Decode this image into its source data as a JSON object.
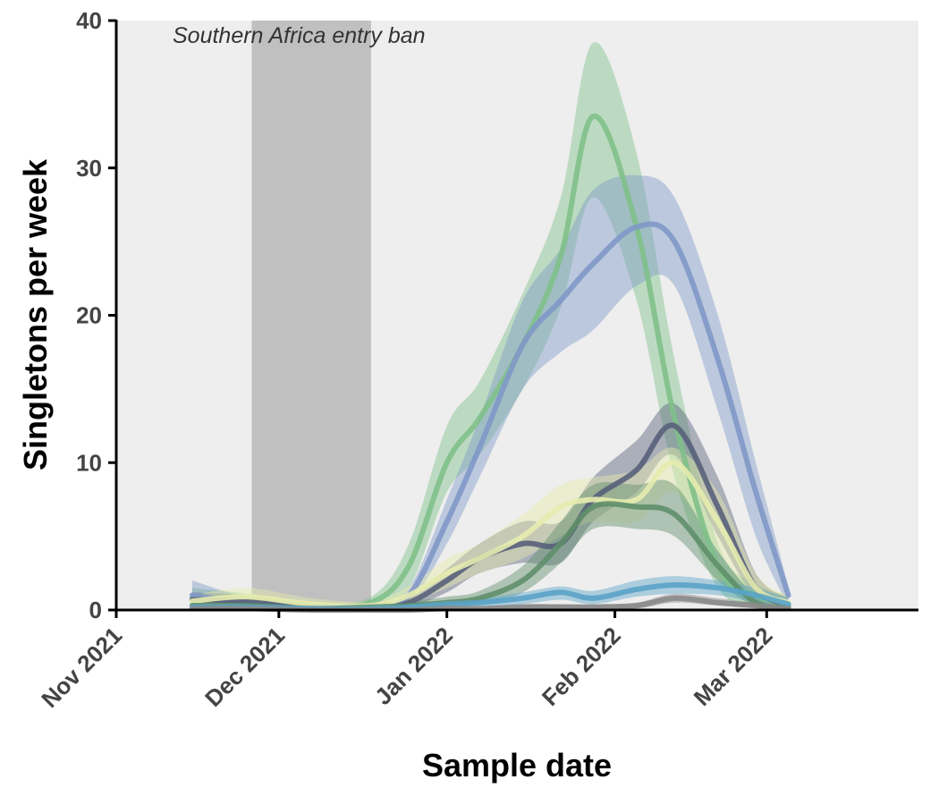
{
  "chart_data": {
    "type": "area",
    "title": "",
    "xlabel": "Sample date",
    "ylabel": "Singletons per week",
    "xlim": [
      "2021-11-01",
      "2022-03-29"
    ],
    "ylim": [
      0,
      40
    ],
    "x_ticks": [
      {
        "date": "2021-11-01",
        "label": "Nov 2021"
      },
      {
        "date": "2021-12-01",
        "label": "Dec 2021"
      },
      {
        "date": "2022-01-01",
        "label": "Jan 2022"
      },
      {
        "date": "2022-02-01",
        "label": "Feb 2022"
      },
      {
        "date": "2022-03-01",
        "label": "Mar 2022"
      }
    ],
    "y_ticks": [
      {
        "value": 0,
        "label": "0"
      },
      {
        "value": 10,
        "label": "10"
      },
      {
        "value": 20,
        "label": "20"
      },
      {
        "value": 30,
        "label": "30"
      },
      {
        "value": 40,
        "label": "40"
      }
    ],
    "grid": false,
    "legend": "none",
    "background_color": "#eeeeee",
    "shaded_region": {
      "start": "2021-11-26",
      "end": "2021-12-18",
      "label": "Southern Africa entry ban",
      "color": "#c0c0c0"
    },
    "x": [
      "2021-11-15",
      "2021-11-25",
      "2021-12-07",
      "2021-12-18",
      "2021-12-25",
      "2022-01-01",
      "2022-01-07",
      "2022-01-15",
      "2022-01-22",
      "2022-01-28",
      "2022-02-05",
      "2022-02-12",
      "2022-02-20",
      "2022-02-27",
      "2022-03-05"
    ],
    "series": [
      {
        "color": "#7fc08a",
        "values": [
          0.8,
          0.6,
          0.2,
          0.5,
          3.0,
          10.0,
          13.0,
          18.0,
          24.0,
          33.5,
          26.0,
          13.0,
          3.0,
          1.0,
          0.4
        ],
        "lower": [
          0.3,
          0.2,
          0.0,
          0.2,
          1.5,
          8.0,
          10.5,
          15.0,
          20.5,
          28.0,
          21.0,
          9.0,
          1.5,
          0.3,
          0.1
        ],
        "upper": [
          1.5,
          1.1,
          0.5,
          0.9,
          4.5,
          12.5,
          15.5,
          21.5,
          28.0,
          38.5,
          31.0,
          17.0,
          4.5,
          1.8,
          1.0
        ]
      },
      {
        "color": "#7f98c8",
        "values": [
          1.0,
          0.5,
          0.2,
          0.3,
          1.0,
          6.0,
          11.0,
          18.0,
          21.0,
          23.5,
          26.0,
          25.0,
          17.0,
          8.0,
          1.0
        ],
        "lower": [
          0.4,
          0.2,
          0.0,
          0.1,
          0.5,
          4.5,
          9.0,
          15.0,
          17.5,
          19.0,
          22.0,
          22.0,
          13.5,
          5.0,
          0.3
        ],
        "upper": [
          2.0,
          0.9,
          0.5,
          0.6,
          1.5,
          7.5,
          13.0,
          21.0,
          24.5,
          28.5,
          29.5,
          28.0,
          20.0,
          10.0,
          1.6
        ]
      },
      {
        "color": "#58617a",
        "values": [
          0.7,
          0.6,
          0.2,
          0.1,
          0.5,
          2.0,
          3.5,
          4.5,
          4.5,
          7.5,
          9.5,
          12.5,
          7.0,
          1.5,
          0.4
        ],
        "lower": [
          0.3,
          0.2,
          0.0,
          0.0,
          0.2,
          1.2,
          2.5,
          3.2,
          3.2,
          6.0,
          8.0,
          10.5,
          5.0,
          0.8,
          0.1
        ],
        "upper": [
          1.2,
          1.0,
          0.5,
          0.3,
          0.9,
          2.8,
          4.5,
          6.0,
          6.0,
          9.0,
          11.5,
          14.0,
          9.0,
          2.5,
          0.8
        ]
      },
      {
        "color": "#e6ecae",
        "values": [
          0.6,
          0.9,
          0.4,
          0.3,
          1.0,
          2.5,
          3.5,
          5.0,
          7.0,
          7.5,
          7.5,
          10.0,
          6.0,
          1.5,
          0.5
        ],
        "lower": [
          0.2,
          0.4,
          0.1,
          0.1,
          0.5,
          1.5,
          2.5,
          3.5,
          5.0,
          6.0,
          6.0,
          8.0,
          4.0,
          0.8,
          0.1
        ],
        "upper": [
          1.0,
          1.5,
          0.8,
          0.6,
          1.6,
          3.5,
          4.5,
          6.5,
          8.5,
          9.0,
          9.5,
          11.0,
          8.0,
          2.5,
          1.0
        ]
      },
      {
        "color": "#5f8f6a",
        "values": [
          0.3,
          0.3,
          0.1,
          0.2,
          0.3,
          0.5,
          0.8,
          2.0,
          4.5,
          7.0,
          7.0,
          6.5,
          3.0,
          0.5,
          0.2
        ],
        "lower": [
          0.1,
          0.1,
          0.0,
          0.0,
          0.1,
          0.2,
          0.4,
          1.2,
          3.2,
          5.5,
          5.5,
          5.0,
          2.0,
          0.2,
          0.0
        ],
        "upper": [
          0.6,
          0.6,
          0.3,
          0.5,
          0.6,
          0.9,
          1.3,
          3.0,
          6.0,
          8.5,
          8.5,
          8.5,
          4.0,
          1.0,
          0.5
        ]
      },
      {
        "color": "#5aa3c8",
        "values": [
          0.2,
          0.2,
          0.1,
          0.1,
          0.2,
          0.4,
          0.5,
          0.8,
          1.2,
          0.8,
          1.4,
          1.7,
          1.5,
          1.0,
          0.4
        ],
        "lower": [
          0.0,
          0.0,
          0.0,
          0.0,
          0.0,
          0.2,
          0.2,
          0.4,
          0.7,
          0.4,
          0.9,
          1.1,
          1.0,
          0.5,
          0.1
        ],
        "upper": [
          0.4,
          0.4,
          0.2,
          0.2,
          0.4,
          0.6,
          0.8,
          1.2,
          1.6,
          1.3,
          2.0,
          2.3,
          2.0,
          1.5,
          0.8
        ]
      },
      {
        "color": "#8a8a8a",
        "values": [
          0.1,
          0.1,
          0.0,
          0.0,
          0.0,
          0.1,
          0.1,
          0.2,
          0.2,
          0.2,
          0.3,
          0.8,
          0.5,
          0.3,
          0.1
        ],
        "lower": [
          0.0,
          0.0,
          0.0,
          0.0,
          0.0,
          0.0,
          0.0,
          0.1,
          0.1,
          0.1,
          0.1,
          0.5,
          0.3,
          0.1,
          0.0
        ],
        "upper": [
          0.3,
          0.3,
          0.1,
          0.1,
          0.1,
          0.2,
          0.2,
          0.4,
          0.4,
          0.4,
          0.5,
          1.1,
          0.8,
          0.5,
          0.3
        ]
      }
    ]
  }
}
